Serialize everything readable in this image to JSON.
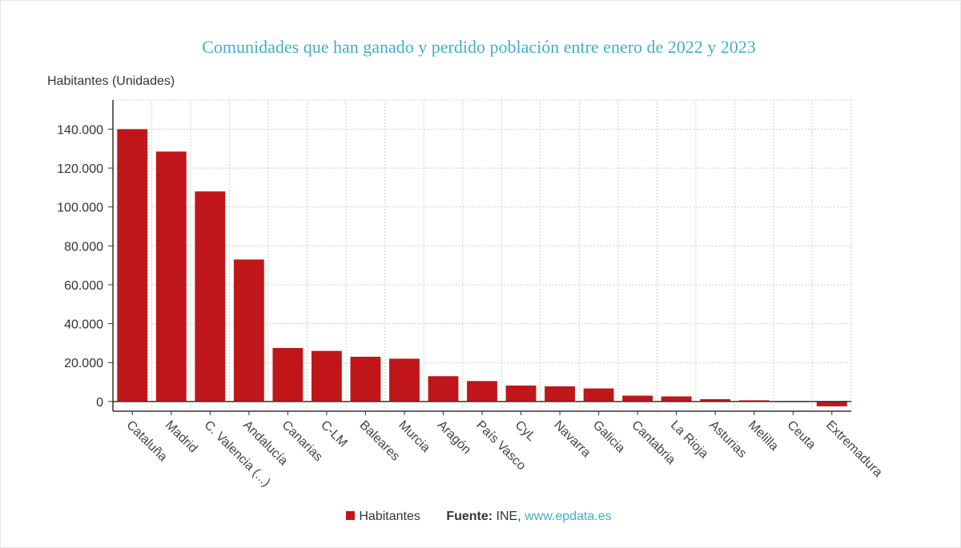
{
  "title": "Comunidades que han ganado y perdido población entre enero de 2022 y 2023",
  "y_unit_label": "Habitantes (Unidades)",
  "legend": {
    "series_label": "Habitantes",
    "source_key": "Fuente:",
    "source_org": "INE,",
    "source_link": "www.epdata.es"
  },
  "colors": {
    "bar": "#c0161a",
    "title": "#41afc7",
    "grid": "#cfcfcf",
    "axis": "#333333"
  },
  "chart_data": {
    "type": "bar",
    "title": "Comunidades que han ganado y perdido población entre enero de 2022 y 2023",
    "ylabel": "Habitantes (Unidades)",
    "xlabel": "",
    "ylim": [
      -5000,
      155000
    ],
    "yticks": [
      0,
      20000,
      40000,
      60000,
      80000,
      100000,
      120000,
      140000
    ],
    "ytick_labels": [
      "0",
      "20.000",
      "40.000",
      "60.000",
      "80.000",
      "100.000",
      "120.000",
      "140.000"
    ],
    "grid": true,
    "legend_position": "bottom",
    "categories": [
      "Cataluña",
      "Madrid",
      "C. Valencia (...)",
      "Andalucía",
      "Canarias",
      "C-LM",
      "Baleares",
      "Murcia",
      "Aragón",
      "País Vasco",
      "CyL",
      "Navarra",
      "Galicia",
      "Cantabria",
      "La Rioja",
      "Asturias",
      "Melilla",
      "Ceuta",
      "Extremadura"
    ],
    "series": [
      {
        "name": "Habitantes",
        "values": [
          140000,
          128500,
          108000,
          73000,
          27500,
          26000,
          23000,
          22000,
          13000,
          10500,
          8200,
          7800,
          6700,
          3000,
          2600,
          1200,
          600,
          -200,
          -2500
        ]
      }
    ]
  }
}
